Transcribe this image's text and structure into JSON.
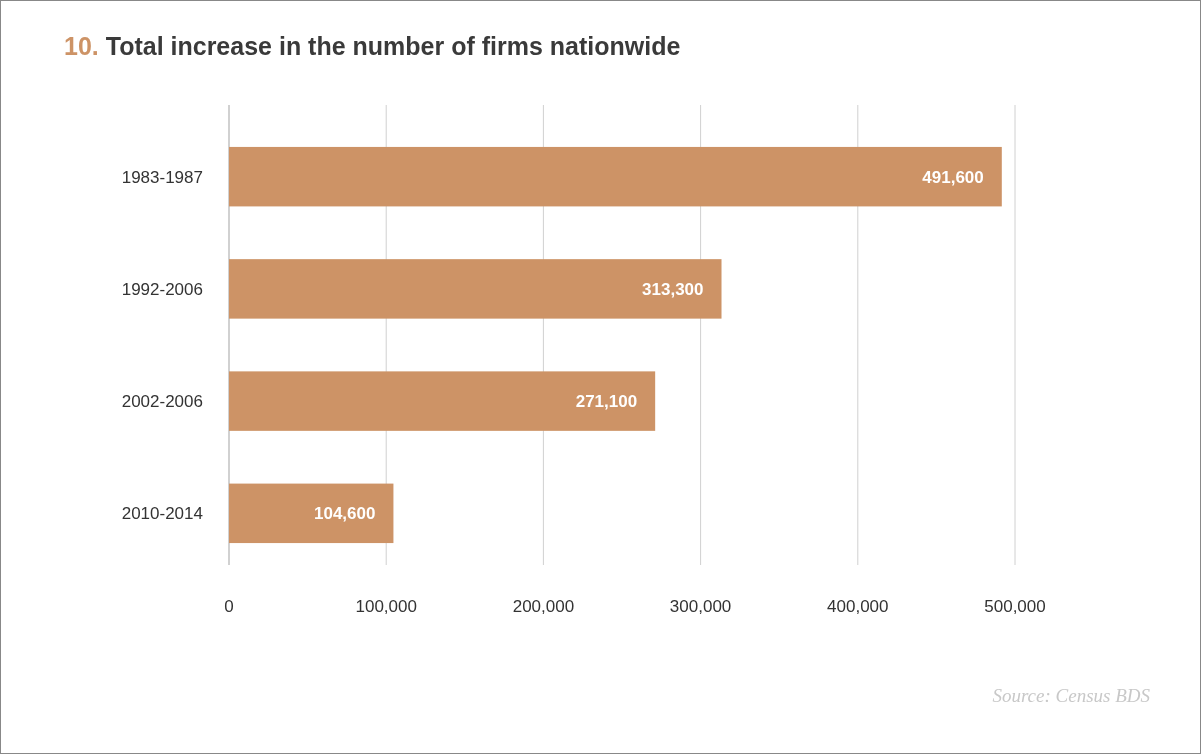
{
  "chart_data": {
    "type": "bar",
    "orientation": "horizontal",
    "title": "10. Total increase in the number of firms nationwide",
    "categories": [
      "1983-1987",
      "1992-2006",
      "2002-2006",
      "2010-2014"
    ],
    "values": [
      491600,
      313300,
      271100,
      104600
    ],
    "color": "#cd9366",
    "xlim": [
      0,
      500000
    ],
    "xticks": [
      0,
      {
        "value": 100000,
        "label": "100,000"
      },
      {
        "value": 200000,
        "label": "200,000"
      },
      {
        "value": 300000,
        "label": "300,000"
      },
      {
        "value": 400000,
        "label": "400,000"
      },
      {
        "value": 500000,
        "label": "500,000"
      }
    ],
    "grid": "x",
    "value_labels": [
      "491,600",
      "313,300",
      "271,100",
      "104,600"
    ],
    "annotations": [
      "Source: Census BDS"
    ]
  }
}
